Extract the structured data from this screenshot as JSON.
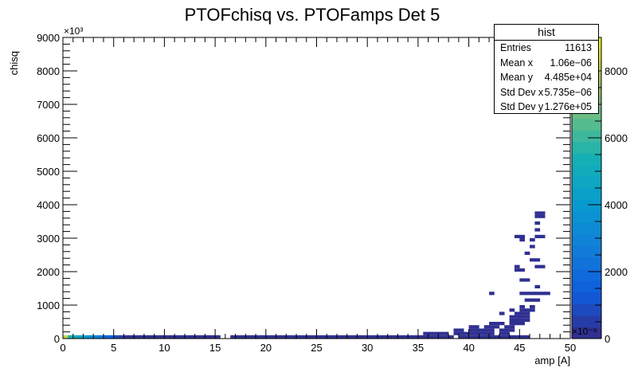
{
  "chart_data": {
    "type": "heatmap",
    "title": "PTOFchisq vs. PTOFamps Det 5",
    "xlabel": "amp [A]",
    "ylabel": "chisq",
    "x_axis": {
      "range": [
        0,
        50
      ],
      "ticks": [
        0,
        5,
        10,
        15,
        20,
        25,
        30,
        35,
        40,
        45,
        50
      ],
      "multiplier": "×10⁻⁶"
    },
    "y_axis": {
      "range": [
        0,
        9000
      ],
      "ticks": [
        0,
        1000,
        2000,
        3000,
        4000,
        5000,
        6000,
        7000,
        8000,
        9000
      ],
      "multiplier": "×10³"
    },
    "z_axis": {
      "range": [
        0,
        9000
      ],
      "ticks": [
        0,
        2000,
        4000,
        6000,
        8000
      ]
    },
    "grid": false,
    "stats_box": {
      "title": "hist",
      "rows": [
        {
          "label": "Entries",
          "value": "11613"
        },
        {
          "label": "Mean x",
          "value": "1.06e−06"
        },
        {
          "label": "Mean y",
          "value": "4.485e+04"
        },
        {
          "label": "Std Dev x",
          "value": "5.735e−06"
        },
        {
          "label": "Std Dev y",
          "value": "1.276e+05"
        }
      ]
    },
    "cells": [
      [
        0,
        0,
        8200
      ],
      [
        0.5,
        0,
        5500
      ],
      [
        1,
        0,
        5000
      ],
      [
        1.5,
        0,
        4500
      ],
      [
        2,
        0,
        4000
      ],
      [
        2.5,
        0,
        3500
      ],
      [
        3,
        0,
        3000
      ],
      [
        3.5,
        0,
        2500
      ],
      [
        4,
        0,
        2000
      ],
      [
        4.5,
        0,
        1500
      ],
      [
        5,
        0,
        1000
      ],
      [
        5.5,
        0,
        400
      ],
      [
        6,
        0,
        300
      ],
      [
        6.5,
        0,
        200
      ],
      [
        7,
        0,
        100
      ],
      [
        7.5,
        0,
        80
      ],
      [
        8,
        0,
        60
      ],
      [
        8.5,
        0,
        40
      ],
      [
        9,
        0,
        30
      ],
      [
        9.5,
        0,
        30
      ],
      [
        10,
        0,
        20
      ],
      [
        10.5,
        0,
        20
      ],
      [
        11,
        0,
        15
      ],
      [
        11.5,
        0,
        15
      ],
      [
        12,
        0,
        10
      ],
      [
        12.5,
        0,
        10
      ],
      [
        13,
        0,
        8
      ],
      [
        13.5,
        0,
        8
      ],
      [
        14,
        0,
        6
      ],
      [
        14.5,
        0,
        6
      ],
      [
        15,
        0,
        5
      ],
      [
        16.5,
        0,
        5
      ],
      [
        17,
        0,
        5
      ],
      [
        17.5,
        0,
        4
      ],
      [
        18,
        0,
        4
      ],
      [
        18.5,
        0,
        4
      ],
      [
        19,
        0,
        3
      ],
      [
        19.5,
        0,
        3
      ],
      [
        20,
        0,
        3
      ],
      [
        20.5,
        0,
        3
      ],
      [
        21,
        0,
        3
      ],
      [
        21.5,
        0,
        2
      ],
      [
        22,
        0,
        2
      ],
      [
        22.5,
        0,
        2
      ],
      [
        23,
        0,
        2
      ],
      [
        23.5,
        0,
        2
      ],
      [
        24,
        0,
        2
      ],
      [
        24.5,
        0,
        2
      ],
      [
        25,
        0,
        2
      ],
      [
        25.5,
        0,
        2
      ],
      [
        26,
        0,
        2
      ],
      [
        26.5,
        0,
        2
      ],
      [
        27,
        0,
        2
      ],
      [
        27.5,
        0,
        2
      ],
      [
        28,
        0,
        2
      ],
      [
        28.5,
        0,
        2
      ],
      [
        29,
        0,
        2
      ],
      [
        29.5,
        0,
        2
      ],
      [
        30,
        0,
        2
      ],
      [
        30.5,
        0,
        2
      ],
      [
        31,
        0,
        2
      ],
      [
        31.5,
        0,
        2
      ],
      [
        32,
        0,
        2
      ],
      [
        32.5,
        0,
        2
      ],
      [
        33,
        0,
        2
      ],
      [
        33.5,
        0,
        2
      ],
      [
        34,
        0,
        2
      ],
      [
        34.5,
        0,
        2
      ],
      [
        35,
        0,
        2
      ],
      [
        35.5,
        0,
        2
      ],
      [
        36,
        0,
        2
      ],
      [
        36.5,
        0,
        2
      ],
      [
        37,
        0,
        2
      ],
      [
        37.5,
        0,
        2
      ],
      [
        38,
        0,
        2
      ],
      [
        39,
        0,
        2
      ],
      [
        39.5,
        0,
        2
      ],
      [
        40,
        0,
        2
      ],
      [
        40.5,
        0,
        2
      ],
      [
        41,
        0,
        2
      ],
      [
        41.5,
        0,
        2
      ],
      [
        42,
        0,
        2
      ],
      [
        42.5,
        0,
        2
      ],
      [
        43,
        0,
        2
      ],
      [
        43.5,
        0,
        2
      ],
      [
        44,
        0,
        2
      ],
      [
        44.5,
        0,
        2
      ],
      [
        45,
        0,
        2
      ],
      [
        45.5,
        0,
        2
      ],
      [
        35.5,
        100,
        2
      ],
      [
        36,
        100,
        2
      ],
      [
        36.5,
        100,
        2
      ],
      [
        37,
        100,
        2
      ],
      [
        37.5,
        100,
        2
      ],
      [
        38.5,
        100,
        2
      ],
      [
        39,
        100,
        2
      ],
      [
        39.5,
        100,
        2
      ],
      [
        40,
        100,
        2
      ],
      [
        40.5,
        100,
        2
      ],
      [
        41,
        100,
        2
      ],
      [
        41.5,
        100,
        2
      ],
      [
        42,
        100,
        2
      ],
      [
        43,
        100,
        2
      ],
      [
        43.5,
        100,
        2
      ],
      [
        38.5,
        200,
        2
      ],
      [
        39,
        200,
        2
      ],
      [
        40,
        200,
        2
      ],
      [
        40.5,
        200,
        2
      ],
      [
        41,
        200,
        2
      ],
      [
        41.5,
        200,
        2
      ],
      [
        42,
        200,
        2
      ],
      [
        43,
        200,
        2
      ],
      [
        43.5,
        200,
        2
      ],
      [
        44,
        200,
        2
      ],
      [
        40,
        300,
        2
      ],
      [
        40.5,
        300,
        2
      ],
      [
        41.5,
        300,
        2
      ],
      [
        42,
        300,
        2
      ],
      [
        42.5,
        300,
        2
      ],
      [
        43.5,
        300,
        2
      ],
      [
        44,
        300,
        2
      ],
      [
        42,
        400,
        2
      ],
      [
        42.5,
        400,
        2
      ],
      [
        43,
        400,
        2
      ],
      [
        44,
        400,
        2
      ],
      [
        44.5,
        400,
        2
      ],
      [
        45,
        400,
        2
      ],
      [
        44,
        500,
        2
      ],
      [
        44.5,
        500,
        2
      ],
      [
        45,
        500,
        2
      ],
      [
        45.5,
        500,
        2
      ],
      [
        44,
        600,
        2
      ],
      [
        44.5,
        600,
        2
      ],
      [
        45,
        600,
        2
      ],
      [
        45.5,
        600,
        2
      ],
      [
        43,
        700,
        2
      ],
      [
        44.5,
        700,
        2
      ],
      [
        45,
        700,
        2
      ],
      [
        45.5,
        700,
        2
      ],
      [
        44,
        800,
        2
      ],
      [
        45,
        800,
        2
      ],
      [
        45.5,
        800,
        2
      ],
      [
        46,
        800,
        2
      ],
      [
        45,
        900,
        2
      ],
      [
        46,
        900,
        2
      ],
      [
        45.5,
        1100,
        2
      ],
      [
        46,
        1100,
        2
      ],
      [
        46.5,
        1100,
        2
      ],
      [
        42,
        1300,
        2
      ],
      [
        45,
        1300,
        2
      ],
      [
        45.5,
        1300,
        2
      ],
      [
        46,
        1300,
        2
      ],
      [
        46.5,
        1300,
        2
      ],
      [
        47,
        1300,
        2
      ],
      [
        47.5,
        1300,
        2
      ],
      [
        46.5,
        1500,
        2
      ],
      [
        45,
        1700,
        2
      ],
      [
        45.5,
        1700,
        2
      ],
      [
        44.5,
        2000,
        2
      ],
      [
        45,
        2000,
        2
      ],
      [
        44.5,
        2100,
        2
      ],
      [
        46.5,
        2100,
        2
      ],
      [
        47,
        2100,
        2
      ],
      [
        46,
        2300,
        2
      ],
      [
        46.5,
        2300,
        2
      ],
      [
        45.5,
        2500,
        2
      ],
      [
        46,
        2700,
        2
      ],
      [
        45,
        2900,
        2
      ],
      [
        46,
        2900,
        2
      ],
      [
        44.5,
        3000,
        2
      ],
      [
        45,
        3000,
        2
      ],
      [
        46.5,
        3000,
        2
      ],
      [
        47,
        3000,
        2
      ],
      [
        46.5,
        3200,
        2
      ],
      [
        46.5,
        3400,
        2
      ],
      [
        46.5,
        3600,
        2
      ],
      [
        47,
        3600,
        2
      ],
      [
        46.5,
        3700,
        2
      ],
      [
        47,
        3700,
        2
      ]
    ]
  }
}
